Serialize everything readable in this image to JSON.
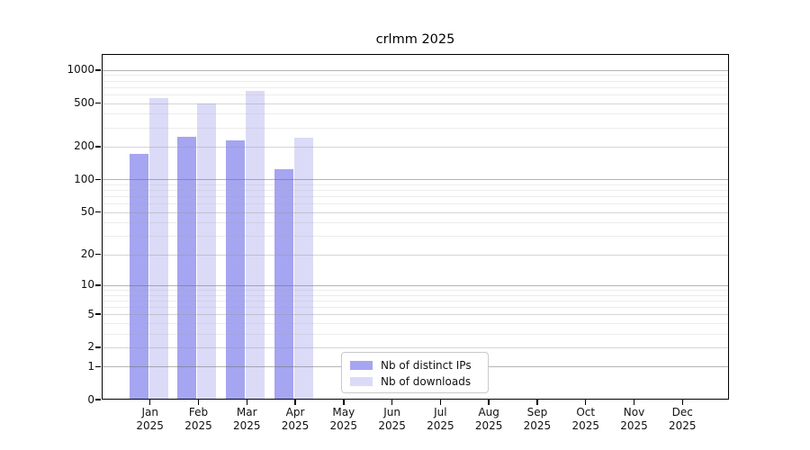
{
  "chart_data": {
    "type": "bar",
    "title": "crlmm 2025",
    "x_categories": [
      "Jan",
      "Feb",
      "Mar",
      "Apr",
      "May",
      "Jun",
      "Jul",
      "Aug",
      "Sep",
      "Oct",
      "Nov",
      "Dec"
    ],
    "x_year": "2025",
    "series": [
      {
        "name": "Nb of distinct IPs",
        "color": "#a5a5f1",
        "values": [
          171,
          244,
          229,
          125,
          null,
          null,
          null,
          null,
          null,
          null,
          null,
          null
        ]
      },
      {
        "name": "Nb of downloads",
        "color": "#dbdbf8",
        "values": [
          550,
          498,
          645,
          240,
          null,
          null,
          null,
          null,
          null,
          null,
          null,
          null
        ]
      }
    ],
    "y_scale": "log10(1+x)",
    "ylim": [
      0,
      1400
    ],
    "y_ticks": [
      0,
      1,
      2,
      5,
      10,
      20,
      50,
      100,
      200,
      500,
      1000
    ],
    "y_decade_ticks": [
      1,
      10,
      100,
      1000
    ],
    "y_minor_gridlines": [
      3,
      4,
      6,
      7,
      8,
      9,
      30,
      40,
      60,
      70,
      80,
      90,
      300,
      400,
      600,
      700,
      800,
      900
    ],
    "grid": "major-and-minor, drawn over bars",
    "legend_position": "bottom-center",
    "xlabel": "",
    "ylabel": ""
  }
}
